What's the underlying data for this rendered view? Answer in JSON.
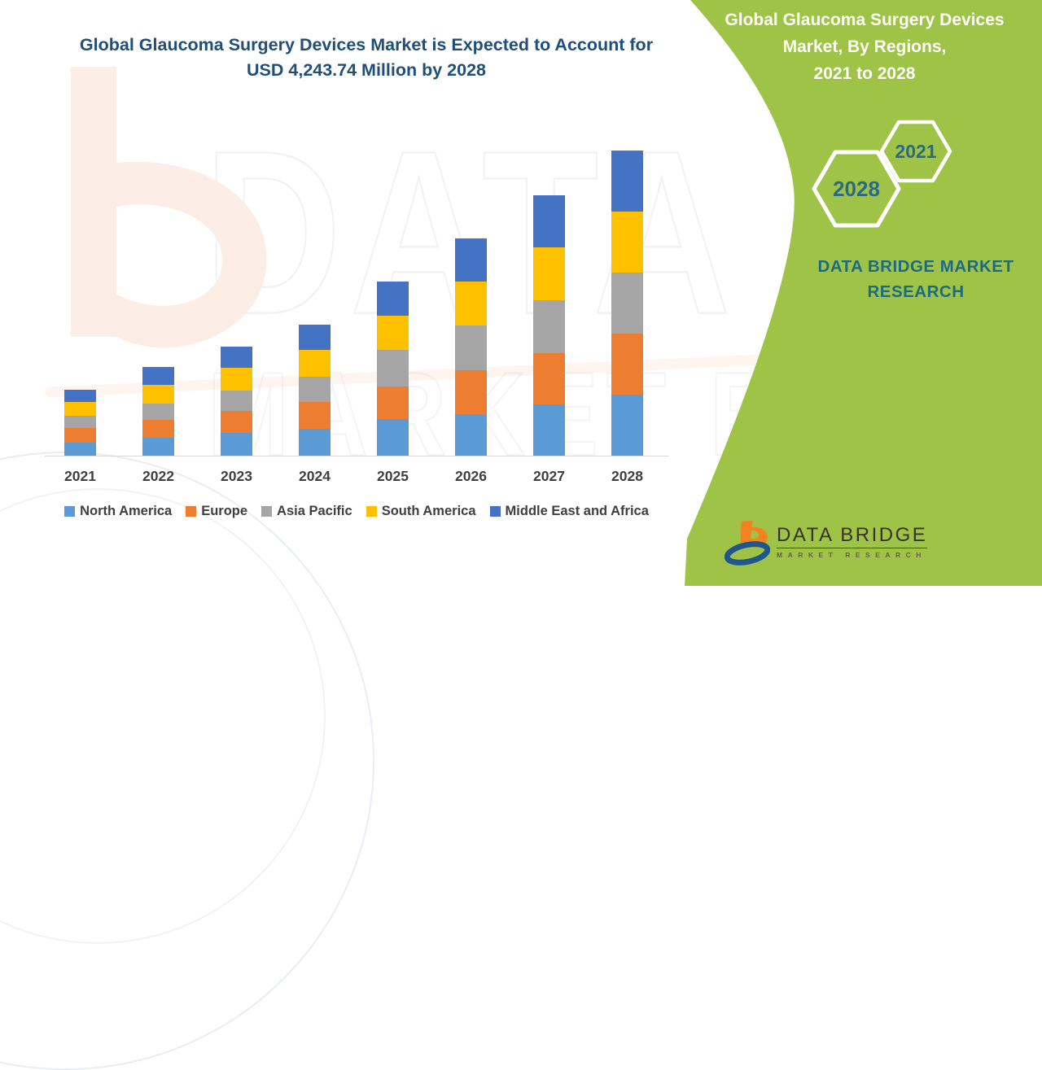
{
  "title": {
    "line1": "Global Glaucoma Surgery Devices Market is Expected to Account for",
    "line2": "USD 4,243.74 Million by 2028"
  },
  "panel": {
    "heading_lines": [
      "Global Glaucoma Surgery Devices",
      "Market, By Regions,",
      "2021 to 2028"
    ],
    "hexagon_year_back": "2021",
    "hexagon_year_front": "2028",
    "brand_lines": [
      "DATA BRIDGE MARKET",
      "RESEARCH"
    ],
    "logo_name": "DATA BRIDGE",
    "logo_tagline": "MARKET RESEARCH",
    "background_color": "#9FC347"
  },
  "watermark": {
    "line1": "DATA BRIDGE",
    "line2": "MARKET RESEARCH"
  },
  "colors": {
    "title_blue": "#1F4E79",
    "panel_green": "#9FC347",
    "brand_teal": "#1E6B80",
    "hex_year_teal": "#2B6987",
    "axis_text": "#3F3F3F",
    "axis_line": "#D9D9D9"
  },
  "chart_data": {
    "type": "bar",
    "stacked": true,
    "title": "Global Glaucoma Surgery Devices Market is Expected to Account for USD 4,243.74 Million by 2028",
    "unit": "USD Million",
    "categories": [
      "2021",
      "2022",
      "2023",
      "2024",
      "2025",
      "2026",
      "2027",
      "2028"
    ],
    "series": [
      {
        "name": "North America",
        "color": "#5B9BD5",
        "values": [
          185,
          246,
          317,
          370,
          510,
          581,
          714,
          846
        ]
      },
      {
        "name": "Europe",
        "color": "#ED7D31",
        "values": [
          200,
          249,
          306,
          377,
          456,
          612,
          717,
          849
        ]
      },
      {
        "name": "Asia Pacific",
        "color": "#A5A5A5",
        "values": [
          173,
          227,
          283,
          348,
          510,
          623,
          736,
          857
        ]
      },
      {
        "name": "South America",
        "color": "#FFC000",
        "values": [
          193,
          268,
          314,
          377,
          472,
          608,
          728,
          842
        ]
      },
      {
        "name": "Middle East and Africa",
        "color": "#4472C4",
        "values": [
          163,
          246,
          302,
          355,
          479,
          600,
          725,
          849.74
        ]
      }
    ],
    "totals": [
      914,
      1236,
      1522,
      1827,
      2427,
      3024,
      3620,
      4243.74
    ],
    "highlight_total_2028": 4243.74,
    "xlabel": "",
    "ylabel": "",
    "ylim": [
      0,
      4650
    ],
    "grid": false,
    "legend_position": "bottom"
  }
}
